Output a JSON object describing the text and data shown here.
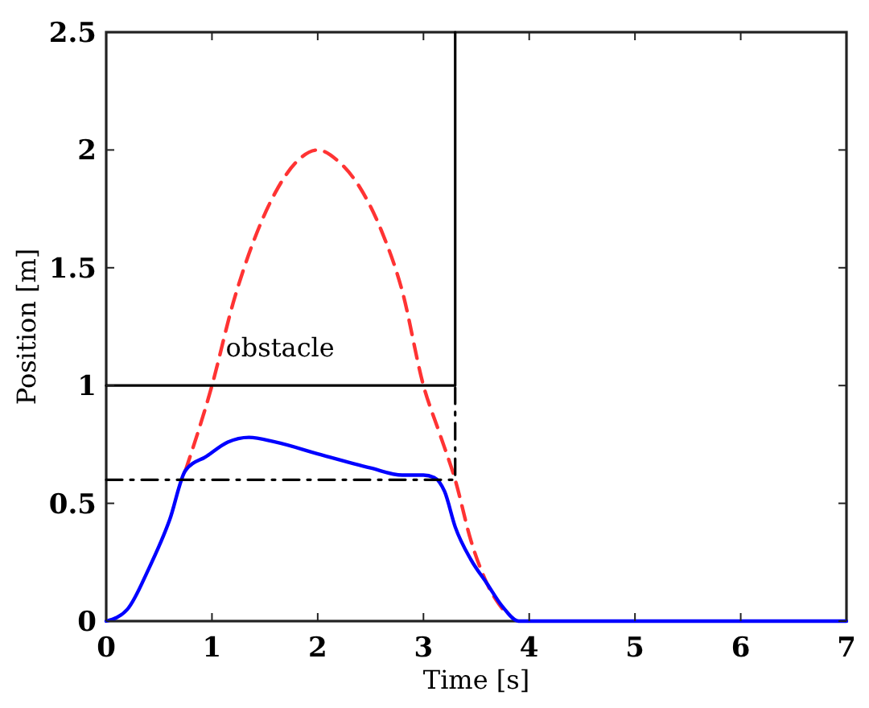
{
  "chart_data": {
    "type": "line",
    "xlabel": "Time [s]",
    "ylabel": "Position [m]",
    "xlim": [
      0,
      7
    ],
    "ylim": [
      0,
      2.5
    ],
    "xticks": [
      0,
      1,
      2,
      3,
      4,
      5,
      6,
      7
    ],
    "yticks": [
      0,
      0.5,
      1,
      1.5,
      2,
      2.5
    ],
    "grid": false,
    "annotations": [
      "obstacle"
    ],
    "series": [
      {
        "color": "#ff3333",
        "line_style": "dashed",
        "x": [
          0.75,
          1.0,
          1.2,
          1.4,
          1.6,
          1.8,
          2.0,
          2.2,
          2.4,
          2.6,
          2.8,
          3.0,
          3.15,
          3.3,
          3.45,
          3.6,
          3.75
        ],
        "values": [
          0.64,
          1.0,
          1.35,
          1.62,
          1.82,
          1.95,
          2.0,
          1.95,
          1.84,
          1.66,
          1.4,
          1.0,
          0.8,
          0.6,
          0.34,
          0.16,
          0.05
        ]
      },
      {
        "color": "#0000ff",
        "line_style": "solid",
        "x": [
          0,
          0.2,
          0.4,
          0.6,
          0.75,
          0.95,
          1.15,
          1.35,
          1.6,
          2.0,
          2.5,
          2.8,
          3.0,
          3.1,
          3.2,
          3.3,
          3.45,
          3.6,
          3.75,
          3.9,
          4.5,
          5,
          6,
          7
        ],
        "values": [
          0,
          0.05,
          0.22,
          0.43,
          0.64,
          0.7,
          0.76,
          0.78,
          0.76,
          0.71,
          0.65,
          0.62,
          0.62,
          0.61,
          0.55,
          0.4,
          0.26,
          0.16,
          0.06,
          0,
          0,
          0,
          0,
          0
        ]
      },
      {
        "color": "#000000",
        "line_style": "solid",
        "x": [
          0,
          3.3,
          3.3
        ],
        "values": [
          1,
          1,
          2.5
        ]
      },
      {
        "color": "#000000",
        "line_style": "dashdot",
        "x": [
          0,
          3.3,
          3.3
        ],
        "values": [
          0.6,
          0.6,
          1
        ]
      }
    ]
  }
}
